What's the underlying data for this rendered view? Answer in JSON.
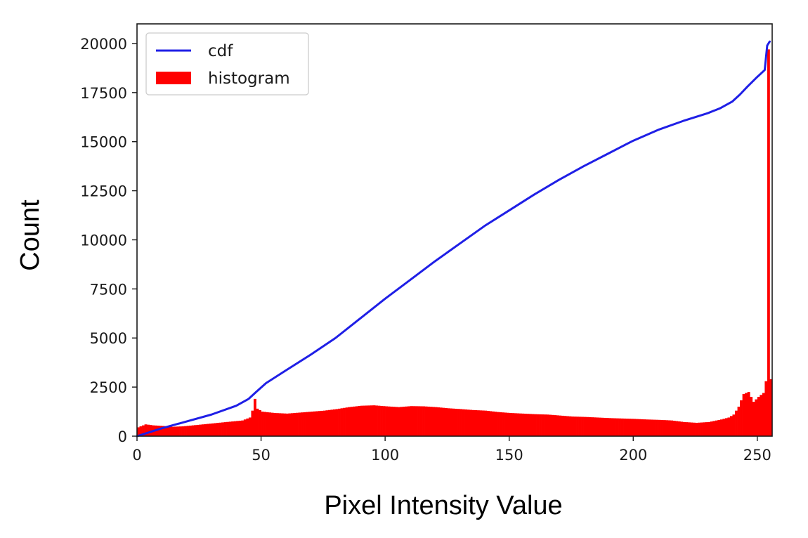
{
  "chart_data": {
    "type": "line",
    "title": "",
    "xlabel": "Pixel Intensity Value",
    "ylabel": "Count",
    "xlim": [
      0,
      256
    ],
    "ylim": [
      0,
      21000
    ],
    "xticks": [
      0,
      50,
      100,
      150,
      200,
      250
    ],
    "yticks": [
      0,
      2500,
      5000,
      7500,
      10000,
      12500,
      15000,
      17500,
      20000
    ],
    "x_tick_labels": [
      "0",
      "50",
      "100",
      "150",
      "200",
      "250"
    ],
    "y_tick_labels": [
      "0",
      "2500",
      "5000",
      "7500",
      "10000",
      "12500",
      "15000",
      "17500",
      "20000"
    ],
    "grid": false,
    "legend_position": "upper-left",
    "legend": [
      {
        "label": "cdf",
        "kind": "line",
        "color": "#1f1fe6"
      },
      {
        "label": "histogram",
        "kind": "patch",
        "color": "#ff0000"
      }
    ],
    "series": [
      {
        "name": "cdf",
        "type": "line",
        "color": "#1f1fe6",
        "x": [
          0,
          10,
          20,
          30,
          40,
          45,
          48,
          52,
          60,
          70,
          80,
          90,
          100,
          110,
          120,
          130,
          140,
          150,
          160,
          170,
          180,
          190,
          200,
          210,
          220,
          230,
          235,
          240,
          243,
          246,
          250,
          253,
          254,
          255
        ],
        "y": [
          0,
          400,
          750,
          1100,
          1550,
          1900,
          2250,
          2700,
          3350,
          4150,
          5000,
          6000,
          7000,
          7950,
          8900,
          9800,
          10700,
          11500,
          12300,
          13050,
          13750,
          14400,
          15050,
          15600,
          16050,
          16450,
          16700,
          17050,
          17400,
          17800,
          18300,
          18650,
          19900,
          20100
        ]
      },
      {
        "name": "histogram",
        "type": "bar",
        "color": "#ff0000",
        "x": [
          0,
          3,
          6,
          10,
          14,
          18,
          22,
          26,
          30,
          34,
          38,
          42,
          45,
          46,
          47,
          48,
          50,
          55,
          60,
          65,
          70,
          75,
          80,
          85,
          90,
          95,
          100,
          105,
          110,
          115,
          120,
          125,
          130,
          135,
          140,
          145,
          150,
          155,
          160,
          165,
          170,
          175,
          180,
          185,
          190,
          195,
          200,
          205,
          210,
          215,
          220,
          225,
          230,
          235,
          238,
          240,
          242,
          244,
          246,
          248,
          250,
          252,
          253,
          254,
          255
        ],
        "y": [
          450,
          600,
          550,
          520,
          480,
          500,
          550,
          600,
          650,
          700,
          750,
          800,
          950,
          1300,
          1900,
          1400,
          1250,
          1180,
          1150,
          1200,
          1250,
          1300,
          1380,
          1480,
          1550,
          1570,
          1520,
          1480,
          1530,
          1520,
          1480,
          1420,
          1380,
          1330,
          1300,
          1230,
          1180,
          1150,
          1120,
          1100,
          1050,
          1000,
          980,
          950,
          920,
          900,
          880,
          850,
          830,
          800,
          720,
          680,
          720,
          850,
          950,
          1100,
          1500,
          2150,
          2250,
          1750,
          2000,
          2200,
          2800,
          19700,
          2900
        ]
      }
    ]
  }
}
